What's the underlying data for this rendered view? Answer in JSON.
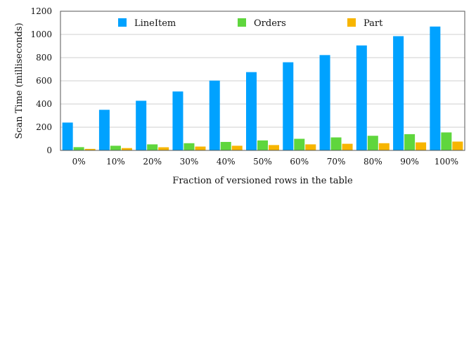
{
  "chart_data": {
    "type": "bar",
    "title": "",
    "xlabel": "Fraction of versioned rows in the table",
    "ylabel": "Scan Time (milliseconds)",
    "ylim": [
      0,
      1200
    ],
    "yticks": [
      0,
      200,
      400,
      600,
      800,
      1000,
      1200
    ],
    "categories": [
      "0%",
      "10%",
      "20%",
      "30%",
      "40%",
      "50%",
      "60%",
      "70%",
      "80%",
      "90%",
      "100%"
    ],
    "grid": true,
    "legend_position": "top",
    "series": [
      {
        "name": "LineItem",
        "color": "#00a2ff",
        "values": [
          240,
          350,
          428,
          508,
          602,
          675,
          760,
          822,
          905,
          985,
          1068
        ]
      },
      {
        "name": "Orders",
        "color": "#5fd63d",
        "values": [
          28,
          40,
          52,
          62,
          73,
          86,
          100,
          112,
          126,
          140,
          155
        ]
      },
      {
        "name": "Part",
        "color": "#f7b500",
        "values": [
          13,
          20,
          27,
          33,
          40,
          46,
          52,
          57,
          62,
          69,
          76
        ]
      }
    ]
  }
}
